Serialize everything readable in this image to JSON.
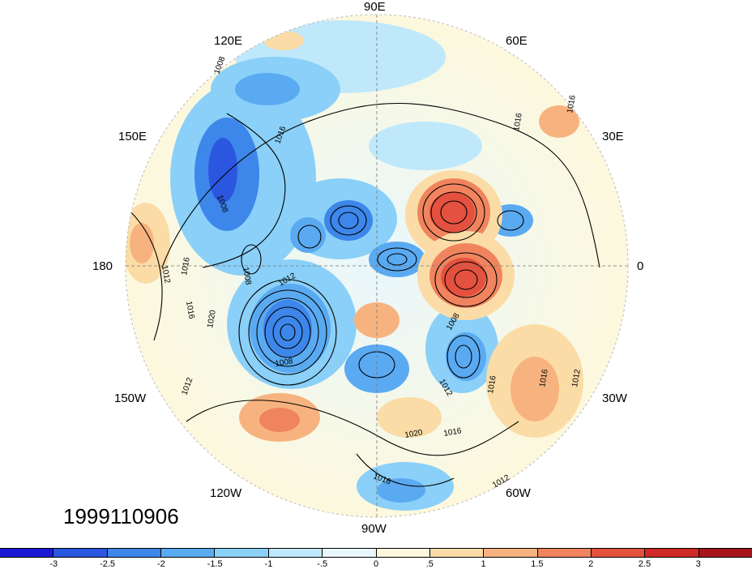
{
  "map": {
    "date_stamp": "1999110906",
    "longitude_labels": {
      "n90e": "90E",
      "n120e": "120E",
      "n60e": "60E",
      "n150e": "150E",
      "n30e": "30E",
      "n180": "180",
      "n0": "0",
      "n150w": "150W",
      "n30w": "30W",
      "n120w": "120W",
      "n60w": "60W",
      "n90w": "90W"
    },
    "contour_labels": [
      "1008",
      "1016",
      "1016",
      "1016",
      "1008",
      "1008",
      "1012",
      "1016",
      "1016",
      "1008",
      "1020",
      "1012",
      "1008",
      "1012",
      "1016",
      "1016",
      "1012",
      "1020",
      "1016",
      "1016",
      "1012",
      "1012"
    ],
    "anomaly_centers": [
      {
        "sign": "negative",
        "color": "#2b5fd9"
      },
      {
        "sign": "positive",
        "color": "#e63a2c"
      }
    ],
    "colorbar": {
      "colors": [
        "#1a1ad6",
        "#2a56e0",
        "#3d86ea",
        "#5aaaf2",
        "#8ad0f8",
        "#bfe8fb",
        "#e9f7fc",
        "#fdf8dd",
        "#fbdca6",
        "#f7b37f",
        "#f0845e",
        "#e5513f",
        "#cf2a27",
        "#a8141d"
      ],
      "tick_labels": [
        "-3",
        "-2.5",
        "-2",
        "-1.5",
        "-1",
        "-.5",
        "0",
        ".5",
        "1",
        "1.5",
        "2",
        "2.5",
        "3"
      ]
    }
  }
}
